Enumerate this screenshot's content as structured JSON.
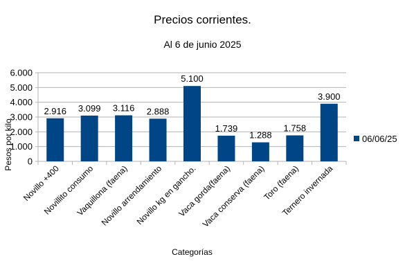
{
  "chart_data": {
    "type": "bar",
    "title": "Precios corrientes.",
    "subtitle": "Al 6 de junio 2025",
    "xlabel": "Categorías",
    "ylabel": "Pesos por kilo",
    "ylim": [
      0,
      6000
    ],
    "yticks": [
      "0",
      "1.000",
      "2.000",
      "3.000",
      "4.000",
      "5.000",
      "6.000"
    ],
    "grid": true,
    "legend_position": "right",
    "categories": [
      "Novillo +400",
      "Novillito consumo",
      "Vaquillona (faena)",
      "Novillo arrendamiento",
      "Novillo kg en gancho.",
      "Vaca gorda(faena)",
      "Vaca conserva (faena)",
      "Toro (faena)",
      "Ternero invernada"
    ],
    "series": [
      {
        "name": "06/06/25",
        "color": "#004586",
        "values": [
          2916,
          3099,
          3116,
          2888,
          5100,
          1739,
          1288,
          1758,
          3900
        ],
        "labels": [
          "2.916",
          "3.099",
          "3.116",
          "2.888",
          "5.100",
          "1.739",
          "1.288",
          "1.758",
          "3.900"
        ]
      }
    ]
  }
}
